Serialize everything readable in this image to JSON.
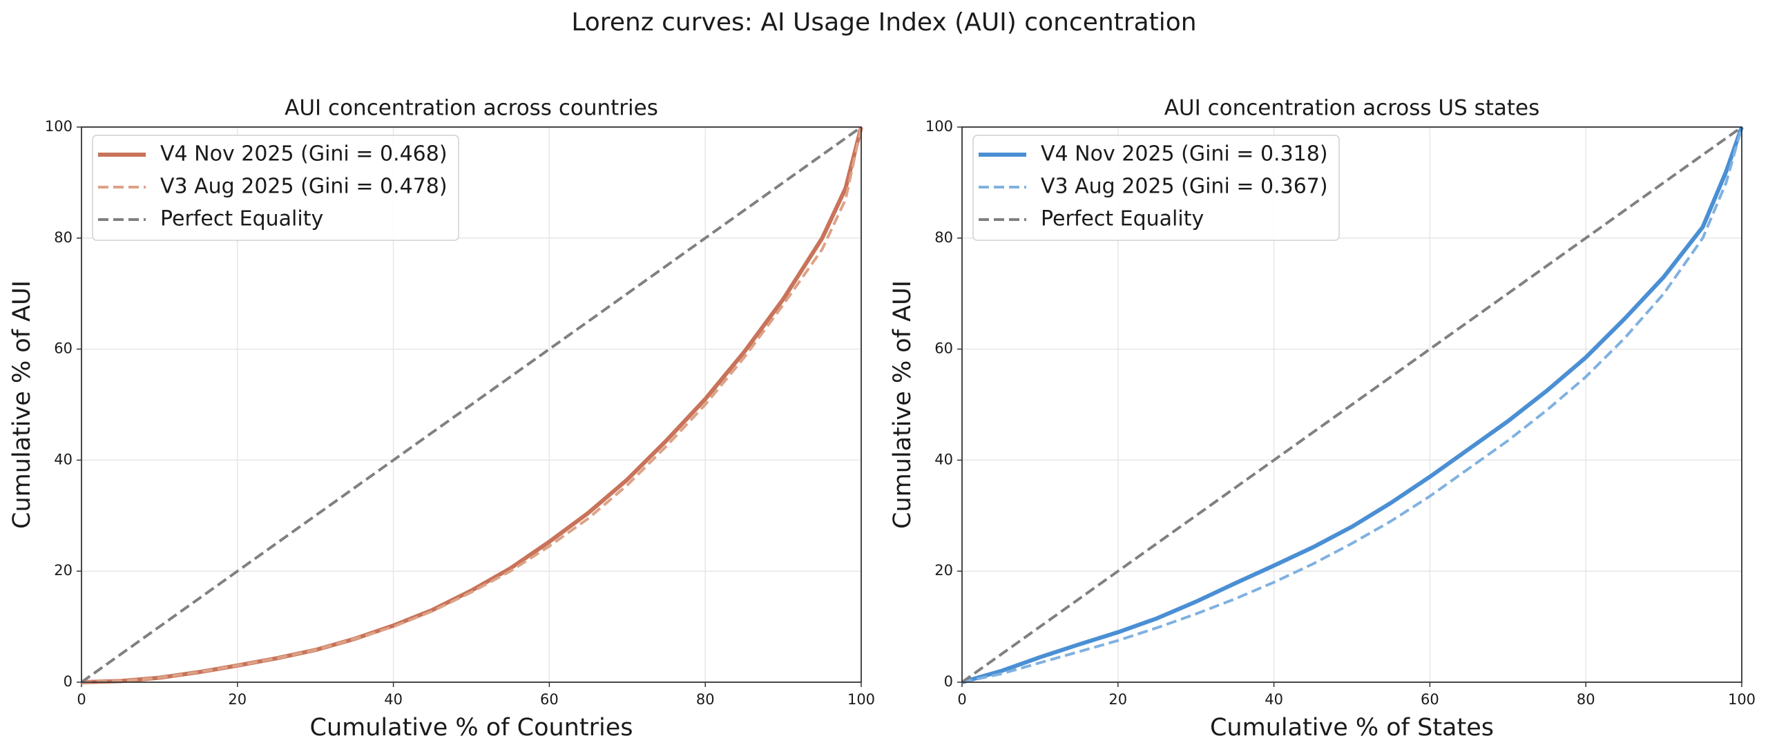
{
  "title": "Lorenz curves: AI Usage Index (AUI) concentration",
  "chart_data": [
    {
      "type": "line",
      "title": "AUI concentration across countries",
      "x_label": "Cumulative % of Countries",
      "y_label": "Cumulative % of AUI",
      "xlim": [
        0,
        100
      ],
      "ylim": [
        0,
        100
      ],
      "xticks": [
        0,
        20,
        40,
        60,
        80,
        100
      ],
      "yticks": [
        0,
        20,
        40,
        60,
        80,
        100
      ],
      "grid": true,
      "legend": "upper left",
      "series": [
        {
          "name": "V4 Nov 2025 (Gini = 0.468)",
          "color": "#c8735a",
          "style": "solid",
          "x": [
            0,
            5,
            10,
            15,
            20,
            25,
            30,
            35,
            40,
            45,
            50,
            55,
            60,
            65,
            70,
            75,
            80,
            85,
            90,
            95,
            98,
            100
          ],
          "values": [
            0,
            0.2,
            0.8,
            1.8,
            3,
            4.3,
            5.8,
            7.8,
            10.2,
            13,
            16.5,
            20.5,
            25.3,
            30.5,
            36.5,
            43.5,
            51,
            59.5,
            69,
            80,
            89,
            100
          ]
        },
        {
          "name": "V3 Aug 2025 (Gini = 0.478)",
          "color": "#dda287",
          "style": "dashed",
          "x": [
            0,
            5,
            10,
            15,
            20,
            25,
            30,
            35,
            40,
            45,
            50,
            55,
            60,
            65,
            70,
            75,
            80,
            85,
            90,
            95,
            98,
            100
          ],
          "values": [
            0,
            0.2,
            0.8,
            1.8,
            3,
            4.3,
            5.8,
            7.8,
            10,
            12.8,
            16.2,
            20,
            24.5,
            29.5,
            35.5,
            42.5,
            50,
            58.5,
            68,
            78,
            87,
            100
          ]
        },
        {
          "name": "Perfect Equality",
          "color": "#808080",
          "style": "dashed",
          "x": [
            0,
            100
          ],
          "values": [
            0,
            100
          ]
        }
      ]
    },
    {
      "type": "line",
      "title": "AUI concentration across US states",
      "x_label": "Cumulative % of States",
      "y_label": "Cumulative % of AUI",
      "xlim": [
        0,
        100
      ],
      "ylim": [
        0,
        100
      ],
      "xticks": [
        0,
        20,
        40,
        60,
        80,
        100
      ],
      "yticks": [
        0,
        20,
        40,
        60,
        80,
        100
      ],
      "grid": true,
      "legend": "upper left",
      "series": [
        {
          "name": "V4 Nov 2025 (Gini = 0.318)",
          "color": "#4a8fd4",
          "style": "solid",
          "x": [
            0,
            5,
            10,
            15,
            20,
            25,
            30,
            35,
            40,
            45,
            50,
            55,
            60,
            65,
            70,
            75,
            80,
            85,
            90,
            95,
            98,
            100
          ],
          "values": [
            0,
            2,
            4.5,
            6.8,
            9,
            11.5,
            14.5,
            17.8,
            21,
            24.3,
            28,
            32.3,
            37,
            42,
            47,
            52.5,
            58.5,
            65.5,
            73,
            82,
            92,
            100
          ]
        },
        {
          "name": "V3 Aug 2025 (Gini = 0.367)",
          "color": "#80b1e0",
          "style": "dashed",
          "x": [
            0,
            5,
            10,
            15,
            20,
            25,
            30,
            35,
            40,
            45,
            50,
            55,
            60,
            65,
            70,
            75,
            80,
            85,
            90,
            95,
            98,
            100
          ],
          "values": [
            0,
            1.5,
            3.5,
            5.5,
            7.5,
            9.8,
            12.3,
            15,
            18,
            21.3,
            25,
            29,
            33.5,
            38.5,
            43.5,
            49,
            55,
            62,
            70,
            80,
            90,
            100
          ]
        },
        {
          "name": "Perfect Equality",
          "color": "#808080",
          "style": "dashed",
          "x": [
            0,
            100
          ],
          "values": [
            0,
            100
          ]
        }
      ]
    }
  ]
}
